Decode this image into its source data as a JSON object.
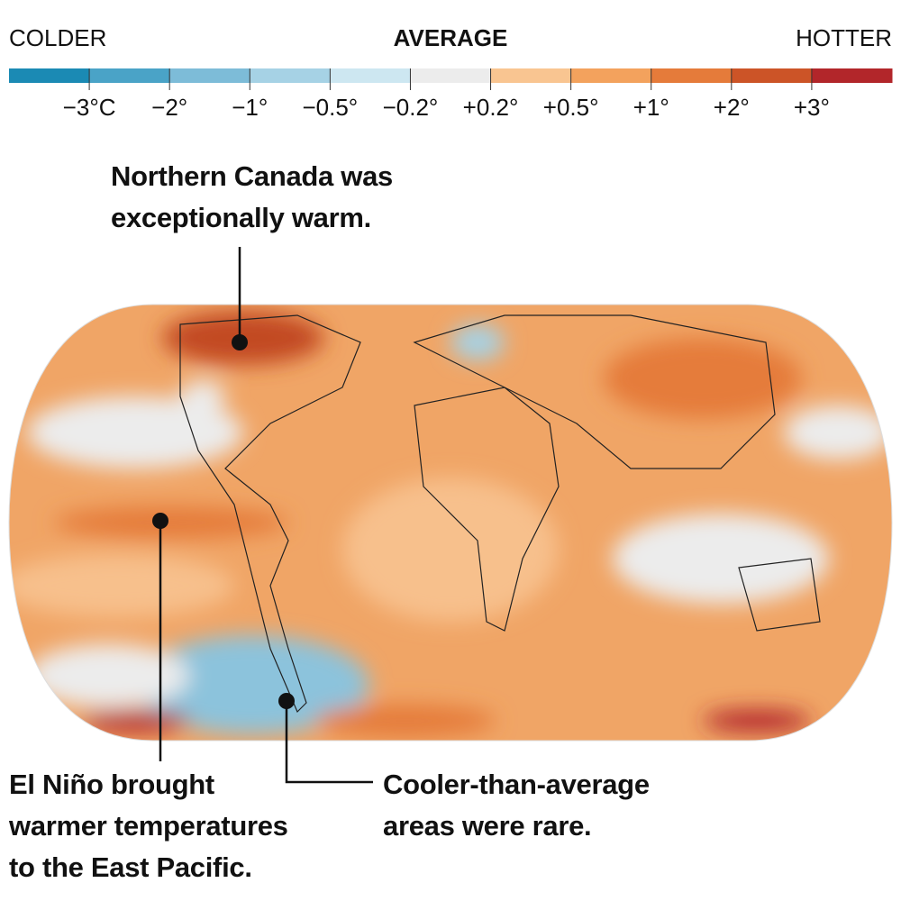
{
  "legend": {
    "left_label": "COLDER",
    "center_label": "AVERAGE",
    "right_label": "HOTTER",
    "colors": [
      "#1b8ab4",
      "#4aa3c7",
      "#7dbcd8",
      "#a6d2e5",
      "#cde7f1",
      "#ececec",
      "#f9c591",
      "#f3a25d",
      "#e57b3a",
      "#cc5427",
      "#b2262a"
    ],
    "tick_labels": [
      "−3°C",
      "−2°",
      "−1°",
      "−0.5°",
      "−0.2°",
      "+0.2°",
      "+0.5°",
      "+1°",
      "+2°",
      "+3°"
    ]
  },
  "annotations": [
    {
      "lines": [
        "Northern Canada was",
        "exceptionally warm."
      ]
    },
    {
      "lines": [
        "El Niño brought",
        "warmer temperatures",
        "to the East Pacific."
      ]
    },
    {
      "lines": [
        "Cooler-than-average",
        "areas were rare."
      ]
    }
  ]
}
